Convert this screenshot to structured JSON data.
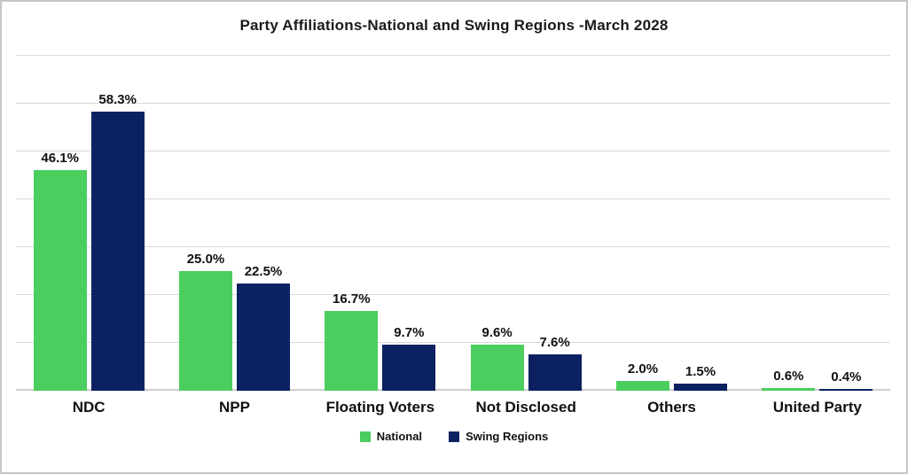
{
  "title": "Party Affiliations-National and Swing Regions -March 2028",
  "chart_data": {
    "type": "bar",
    "title": "Party Affiliations-National and Swing Regions -March 2028",
    "categories": [
      "NDC",
      "NPP",
      "Floating Voters",
      "Not Disclosed",
      "Others",
      "United Party"
    ],
    "series": [
      {
        "name": "National",
        "color": "#4bce5e",
        "values": [
          46.1,
          25.0,
          16.7,
          9.6,
          2.0,
          0.6
        ]
      },
      {
        "name": "Swing Regions",
        "color": "#0b2161",
        "values": [
          58.3,
          22.5,
          9.7,
          7.6,
          1.5,
          0.4
        ]
      }
    ],
    "data_labels": [
      [
        "46.1%",
        "25.0%",
        "16.7%",
        "9.6%",
        "2.0%",
        "0.6%"
      ],
      [
        "58.3%",
        "22.5%",
        "9.7%",
        "7.6%",
        "1.5%",
        "0.4%"
      ]
    ],
    "xlabel": "",
    "ylabel": "",
    "ylim": [
      0,
      70
    ],
    "grid": true,
    "grid_step": 10,
    "y_tick_labels_visible": false,
    "legend_position": "bottom"
  },
  "colors": {
    "grid": "#d9d9d9",
    "axis": "#cfcfcf",
    "border": "#c6c6c6",
    "text": "#111111",
    "background": "#ffffff"
  }
}
